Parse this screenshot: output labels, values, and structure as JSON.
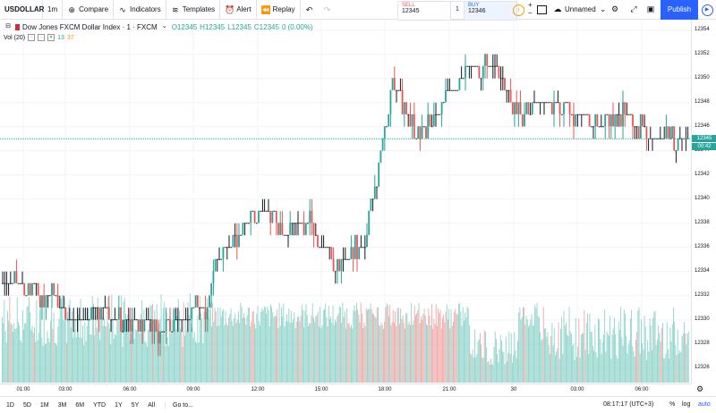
{
  "toolbar": {
    "symbol": "USDOLLAR",
    "interval": "1m",
    "compare": "Compare",
    "indicators": "Indicators",
    "templates": "Templates",
    "alert": "Alert",
    "replay": "Replay",
    "layout_name": "Unnamed",
    "publish": "Publish"
  },
  "trade": {
    "sell_label": "SELL",
    "sell_price": "12345",
    "spread": "1",
    "buy_label": "BUY",
    "buy_price": "12346"
  },
  "legend": {
    "title": "Dow Jones FXCM Dollar Index · 1 · FXCM",
    "o": "O12345",
    "h": "H12345",
    "l": "L12345",
    "c": "C12345",
    "change": "0 (0.00%)",
    "vol_label": "Vol (20)",
    "vol_a": "13",
    "vol_b": "37"
  },
  "price_axis": {
    "ticks": [
      "12354",
      "12352",
      "12350",
      "12348",
      "12346",
      "12344",
      "12342",
      "12340",
      "12338",
      "12336",
      "12334",
      "12332",
      "12330",
      "12328",
      "12326"
    ],
    "last_price": "12345",
    "countdown": "00:42"
  },
  "time_axis": [
    "01:00",
    "03:00",
    "06:00",
    "09:00",
    "12:00",
    "15:00",
    "18:00",
    "21:00",
    "30",
    "03:00",
    "06:00"
  ],
  "bottom": {
    "ranges": [
      "1D",
      "5D",
      "1M",
      "3M",
      "6M",
      "YTD",
      "1Y",
      "5Y",
      "All"
    ],
    "goto": "Go to...",
    "clock": "08:17:17 (UTC+3)",
    "percent": "%",
    "log": "log",
    "auto": "auto"
  },
  "colors": {
    "up": "#26a69a",
    "down": "#ef5350",
    "vol_up": "#8fd4cb",
    "vol_down": "#f0a9a6",
    "accent": "#2962ff"
  },
  "chart_data": {
    "type": "bar",
    "y_range": [
      12325,
      12355
    ],
    "last": 12345,
    "path_knots": [
      [
        0,
        12333
      ],
      [
        0.03,
        12333
      ],
      [
        0.06,
        12332
      ],
      [
        0.08,
        12332
      ],
      [
        0.1,
        12330
      ],
      [
        0.12,
        12330
      ],
      [
        0.14,
        12331
      ],
      [
        0.17,
        12330
      ],
      [
        0.2,
        12330
      ],
      [
        0.23,
        12329
      ],
      [
        0.26,
        12330
      ],
      [
        0.28,
        12331
      ],
      [
        0.3,
        12331
      ],
      [
        0.31,
        12334
      ],
      [
        0.33,
        12336
      ],
      [
        0.36,
        12338
      ],
      [
        0.39,
        12339
      ],
      [
        0.41,
        12337
      ],
      [
        0.43,
        12338
      ],
      [
        0.45,
        12338
      ],
      [
        0.47,
        12336
      ],
      [
        0.49,
        12334
      ],
      [
        0.51,
        12336
      ],
      [
        0.53,
        12336
      ],
      [
        0.54,
        12340
      ],
      [
        0.56,
        12346
      ],
      [
        0.57,
        12350
      ],
      [
        0.59,
        12347
      ],
      [
        0.61,
        12345
      ],
      [
        0.64,
        12348
      ],
      [
        0.66,
        12349
      ],
      [
        0.68,
        12351
      ],
      [
        0.7,
        12351
      ],
      [
        0.72,
        12351
      ],
      [
        0.74,
        12348
      ],
      [
        0.76,
        12347
      ],
      [
        0.78,
        12348
      ],
      [
        0.8,
        12348
      ],
      [
        0.83,
        12347
      ],
      [
        0.86,
        12346
      ],
      [
        0.88,
        12346
      ],
      [
        0.9,
        12347
      ],
      [
        0.93,
        12346
      ],
      [
        0.95,
        12345
      ],
      [
        0.97,
        12345
      ],
      [
        1,
        12345
      ]
    ]
  }
}
